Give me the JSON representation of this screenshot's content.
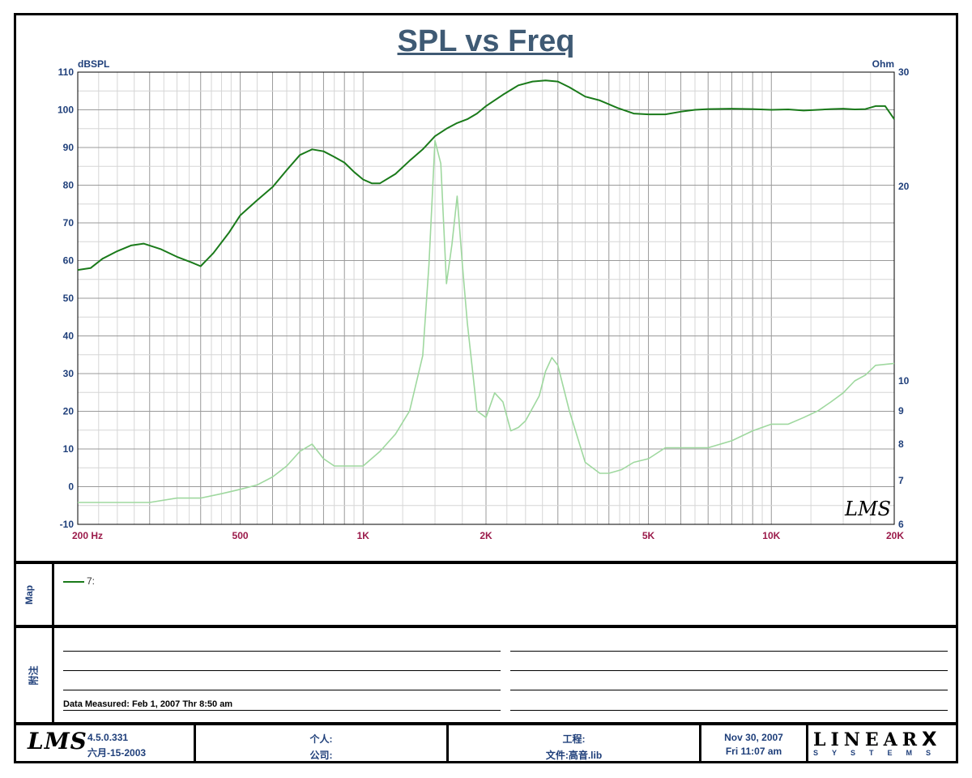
{
  "chart_data": {
    "type": "line",
    "title": "SPL vs Freq",
    "left_unit": "dBSPL",
    "right_unit": "Ohm",
    "x_scale": "log",
    "xlim": [
      200,
      20000
    ],
    "ylim": [
      -10,
      110
    ],
    "y2lim": [
      6,
      30
    ],
    "x_tick_labels": [
      {
        "value": 200,
        "label": "200  Hz"
      },
      {
        "value": 500,
        "label": "500"
      },
      {
        "value": 1000,
        "label": "1K"
      },
      {
        "value": 2000,
        "label": "2K"
      },
      {
        "value": 5000,
        "label": "5K"
      },
      {
        "value": 10000,
        "label": "10K"
      },
      {
        "value": 20000,
        "label": "20K"
      }
    ],
    "y_ticks": [
      -10,
      0,
      10,
      20,
      30,
      40,
      50,
      60,
      70,
      80,
      90,
      100,
      110
    ],
    "y2_ticks": [
      6,
      7,
      8,
      9,
      10,
      20,
      30
    ],
    "grid": true,
    "series": [
      {
        "name": "7:",
        "axis": "left",
        "color": "#1a7a1a",
        "x": [
          200,
          215,
          230,
          250,
          270,
          290,
          320,
          350,
          380,
          400,
          430,
          470,
          500,
          550,
          600,
          650,
          700,
          750,
          800,
          850,
          900,
          950,
          1000,
          1050,
          1100,
          1200,
          1300,
          1400,
          1500,
          1600,
          1700,
          1800,
          1900,
          2000,
          2200,
          2400,
          2600,
          2800,
          3000,
          3200,
          3500,
          3800,
          4200,
          4600,
          5000,
          5500,
          6000,
          6500,
          7000,
          8000,
          9000,
          10000,
          11000,
          12000,
          13000,
          14000,
          15000,
          16000,
          17000,
          18000,
          19000,
          20000
        ],
        "values": [
          57.5,
          58,
          60.5,
          62.5,
          64,
          64.5,
          63,
          61,
          59.5,
          58.5,
          62,
          67.5,
          72,
          76,
          79.5,
          84,
          88,
          89.5,
          89,
          87.5,
          86,
          83.5,
          81.5,
          80.5,
          80.5,
          83,
          86.5,
          89.5,
          93,
          95,
          96.5,
          97.5,
          99,
          101,
          104,
          106.5,
          107.5,
          107.8,
          107.5,
          106,
          103.5,
          102.5,
          100.5,
          99,
          98.8,
          98.8,
          99.5,
          100,
          100.2,
          100.3,
          100.2,
          100,
          100.1,
          99.8,
          100,
          100.2,
          100.3,
          100.1,
          100.2,
          101,
          101,
          97.5
        ]
      },
      {
        "name": "",
        "axis": "right",
        "color": "#9fd89f",
        "x": [
          200,
          250,
          300,
          350,
          400,
          450,
          500,
          550,
          600,
          650,
          700,
          750,
          800,
          850,
          900,
          950,
          1000,
          1100,
          1200,
          1300,
          1400,
          1450,
          1500,
          1550,
          1600,
          1650,
          1700,
          1750,
          1800,
          1900,
          2000,
          2100,
          2200,
          2300,
          2400,
          2500,
          2700,
          2800,
          2900,
          3000,
          3200,
          3500,
          3800,
          4000,
          4300,
          4600,
          5000,
          5500,
          6000,
          6500,
          7000,
          8000,
          9000,
          10000,
          11000,
          12000,
          13000,
          14000,
          15000,
          16000,
          17000,
          18000,
          20000
        ],
        "values": [
          6.5,
          6.5,
          6.5,
          6.6,
          6.6,
          6.7,
          6.8,
          6.9,
          7.1,
          7.4,
          7.8,
          8.0,
          7.6,
          7.4,
          7.4,
          7.4,
          7.4,
          7.8,
          8.3,
          9.0,
          11.3,
          16.0,
          24.0,
          22.0,
          15.0,
          17.0,
          19.5,
          16.0,
          13.0,
          9.0,
          8.8,
          9.6,
          9.3,
          8.4,
          8.5,
          8.7,
          9.5,
          10.5,
          11.2,
          10.8,
          9.0,
          7.5,
          7.2,
          7.2,
          7.3,
          7.5,
          7.6,
          7.9,
          7.9,
          7.9,
          7.9,
          8.1,
          8.4,
          8.6,
          8.6,
          8.8,
          9.0,
          9.3,
          9.6,
          10.0,
          10.3,
          10.8,
          10.9
        ]
      }
    ]
  },
  "map_panel": {
    "side_label": "Map",
    "legend_label": "7:"
  },
  "notes_panel": {
    "side_label": "附注",
    "measured": "Data Measured: Feb  1, 2007  Thr  8:50 am"
  },
  "footer": {
    "logo": "LMS",
    "watermark": "LMS",
    "version": "4.5.0.331",
    "version_date": "六月-15-2003",
    "person_label": "个人:",
    "company_label": "公司:",
    "project_label": "工程:",
    "file_label": "文件:高音.lib",
    "date": "Nov 30, 2007",
    "time": "Fri 11:07 am",
    "brand": "LINEAR",
    "brand_x": "X",
    "brand_sub": "SYSTEMS"
  }
}
